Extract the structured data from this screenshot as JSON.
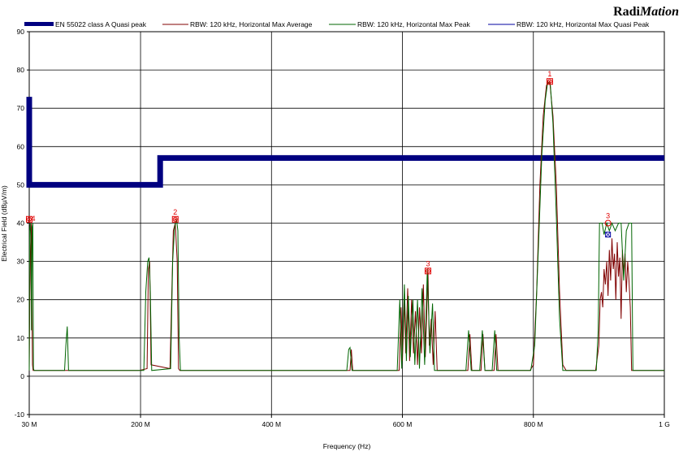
{
  "brand": {
    "prefix": "Radi",
    "suffix": "Mation"
  },
  "chart_data": {
    "type": "line",
    "title": "",
    "xlabel": "Frequency (Hz)",
    "ylabel": "Electrical Field (dBµV/m)",
    "xlim": [
      30,
      1000
    ],
    "ylim": [
      -10,
      90
    ],
    "grid": true,
    "legend_position": "top",
    "x_ticks": [
      {
        "value": 30,
        "label": "30 M"
      },
      {
        "value": 200,
        "label": "200 M"
      },
      {
        "value": 400,
        "label": "400 M"
      },
      {
        "value": 600,
        "label": "600 M"
      },
      {
        "value": 800,
        "label": "800 M"
      },
      {
        "value": 1000,
        "label": "1 G"
      }
    ],
    "y_ticks": [
      -10,
      0,
      10,
      20,
      30,
      40,
      50,
      60,
      70,
      80,
      90
    ],
    "series": [
      {
        "name": "EN 55022 class A Quasi peak",
        "color": "#000080",
        "style": "thick",
        "points": [
          [
            30,
            73
          ],
          [
            30,
            50
          ],
          [
            230,
            50
          ],
          [
            230,
            57
          ],
          [
            1000,
            57
          ]
        ]
      },
      {
        "name": "RBW: 120 kHz, Horizontal Max Average",
        "color": "#800000",
        "style": "thin",
        "points": [
          [
            30,
            1.5
          ],
          [
            31,
            22
          ],
          [
            32,
            34
          ],
          [
            33,
            40
          ],
          [
            34,
            20
          ],
          [
            35,
            3
          ],
          [
            36,
            1.5
          ],
          [
            90,
            1.5
          ],
          [
            198,
            1.5
          ],
          [
            210,
            2
          ],
          [
            212,
            28
          ],
          [
            214,
            30
          ],
          [
            216,
            3
          ],
          [
            245,
            2
          ],
          [
            250,
            38
          ],
          [
            253,
            40
          ],
          [
            256,
            30
          ],
          [
            258,
            2
          ],
          [
            260,
            1.5
          ],
          [
            520,
            1.5
          ],
          [
            522,
            7
          ],
          [
            524,
            1.5
          ],
          [
            595,
            1.5
          ],
          [
            598,
            18
          ],
          [
            600,
            4
          ],
          [
            603,
            20
          ],
          [
            605,
            6
          ],
          [
            608,
            23
          ],
          [
            611,
            4
          ],
          [
            614,
            20
          ],
          [
            617,
            6
          ],
          [
            620,
            17
          ],
          [
            623,
            3
          ],
          [
            626,
            18
          ],
          [
            629,
            6
          ],
          [
            632,
            24
          ],
          [
            635,
            5
          ],
          [
            639,
            27
          ],
          [
            641,
            8
          ],
          [
            644,
            15
          ],
          [
            647,
            3
          ],
          [
            650,
            17
          ],
          [
            653,
            1.5
          ],
          [
            700,
            1.5
          ],
          [
            703,
            11
          ],
          [
            706,
            1.5
          ],
          [
            720,
            1.5
          ],
          [
            723,
            11
          ],
          [
            726,
            1.5
          ],
          [
            740,
            1.5
          ],
          [
            743,
            11
          ],
          [
            746,
            1.5
          ],
          [
            795,
            1.5
          ],
          [
            800,
            3
          ],
          [
            805,
            22
          ],
          [
            810,
            50
          ],
          [
            815,
            68
          ],
          [
            820,
            76
          ],
          [
            825,
            77
          ],
          [
            830,
            68
          ],
          [
            835,
            50
          ],
          [
            840,
            22
          ],
          [
            845,
            3
          ],
          [
            850,
            1.5
          ],
          [
            895,
            1.5
          ],
          [
            900,
            8
          ],
          [
            902,
            20
          ],
          [
            904,
            22
          ],
          [
            906,
            18
          ],
          [
            908,
            28
          ],
          [
            910,
            24
          ],
          [
            912,
            30
          ],
          [
            914,
            21
          ],
          [
            916,
            33
          ],
          [
            918,
            25
          ],
          [
            920,
            36
          ],
          [
            922,
            28
          ],
          [
            924,
            32
          ],
          [
            926,
            20
          ],
          [
            928,
            35
          ],
          [
            930,
            26
          ],
          [
            932,
            31
          ],
          [
            934,
            15
          ],
          [
            936,
            33
          ],
          [
            938,
            27
          ],
          [
            940,
            32
          ],
          [
            942,
            22
          ],
          [
            944,
            30
          ],
          [
            946,
            25
          ],
          [
            948,
            18
          ],
          [
            950,
            1.5
          ],
          [
            1000,
            1.5
          ]
        ]
      },
      {
        "name": "RBW: 120 kHz, Horizontal Max Peak",
        "color": "#006400",
        "style": "thin",
        "points": [
          [
            30,
            1.5
          ],
          [
            30.5,
            38
          ],
          [
            31.5,
            40
          ],
          [
            32.5,
            35
          ],
          [
            33.5,
            12
          ],
          [
            34.5,
            39
          ],
          [
            35.5,
            40
          ],
          [
            36.5,
            2
          ],
          [
            37.5,
            1.5
          ],
          [
            84,
            1.5
          ],
          [
            86,
            8
          ],
          [
            88,
            13
          ],
          [
            90,
            1.5
          ],
          [
            205,
            1.5
          ],
          [
            208,
            22
          ],
          [
            211,
            30
          ],
          [
            213,
            31
          ],
          [
            215,
            22
          ],
          [
            217,
            1.5
          ],
          [
            246,
            2
          ],
          [
            249,
            30
          ],
          [
            252,
            39
          ],
          [
            255,
            41
          ],
          [
            257,
            38
          ],
          [
            259,
            10
          ],
          [
            261,
            1.5
          ],
          [
            515,
            1.5
          ],
          [
            518,
            7
          ],
          [
            520,
            7.5
          ],
          [
            523,
            1.5
          ],
          [
            592,
            1.5
          ],
          [
            596,
            20
          ],
          [
            599,
            2
          ],
          [
            603,
            24
          ],
          [
            606,
            4
          ],
          [
            609,
            21
          ],
          [
            612,
            5
          ],
          [
            616,
            20
          ],
          [
            619,
            3
          ],
          [
            623,
            20
          ],
          [
            626,
            2
          ],
          [
            630,
            23
          ],
          [
            634,
            3
          ],
          [
            638,
            28
          ],
          [
            642,
            6
          ],
          [
            646,
            19
          ],
          [
            649,
            1.5
          ],
          [
            697,
            1.5
          ],
          [
            701,
            12
          ],
          [
            705,
            1.5
          ],
          [
            718,
            1.5
          ],
          [
            722,
            12
          ],
          [
            726,
            1.5
          ],
          [
            737,
            1.5
          ],
          [
            741,
            12
          ],
          [
            744,
            1.5
          ],
          [
            796,
            1.5
          ],
          [
            802,
            8
          ],
          [
            808,
            35
          ],
          [
            813,
            58
          ],
          [
            818,
            72
          ],
          [
            822,
            77
          ],
          [
            826,
            76
          ],
          [
            830,
            66
          ],
          [
            835,
            42
          ],
          [
            840,
            15
          ],
          [
            845,
            1.5
          ],
          [
            896,
            1.5
          ],
          [
            899,
            12
          ],
          [
            901,
            40
          ],
          [
            905,
            40
          ],
          [
            908,
            37
          ],
          [
            912,
            40
          ],
          [
            916,
            38
          ],
          [
            920,
            40
          ],
          [
            925,
            38
          ],
          [
            930,
            40
          ],
          [
            934,
            40
          ],
          [
            938,
            25
          ],
          [
            942,
            38
          ],
          [
            946,
            40
          ],
          [
            950,
            40
          ],
          [
            952,
            1.5
          ],
          [
            1000,
            1.5
          ]
        ]
      },
      {
        "name": "RBW: 120 kHz, Horizontal Max Quasi Peak",
        "color": "#0000a0",
        "style": "thin",
        "points": []
      }
    ],
    "markers": [
      {
        "label": "1",
        "x": 825,
        "y": 77,
        "type": "avg"
      },
      {
        "label": "2",
        "x": 253,
        "y": 41,
        "type": "avg"
      },
      {
        "label": "3",
        "x": 639,
        "y": 27.5,
        "type": "avg"
      },
      {
        "label": "3",
        "x": 914,
        "y": 40,
        "type": "peak"
      },
      {
        "label": "4",
        "x": 30,
        "y": 41,
        "type": "avg"
      }
    ],
    "quasi_peak_points": [
      {
        "x": 914,
        "y": 37
      }
    ]
  }
}
